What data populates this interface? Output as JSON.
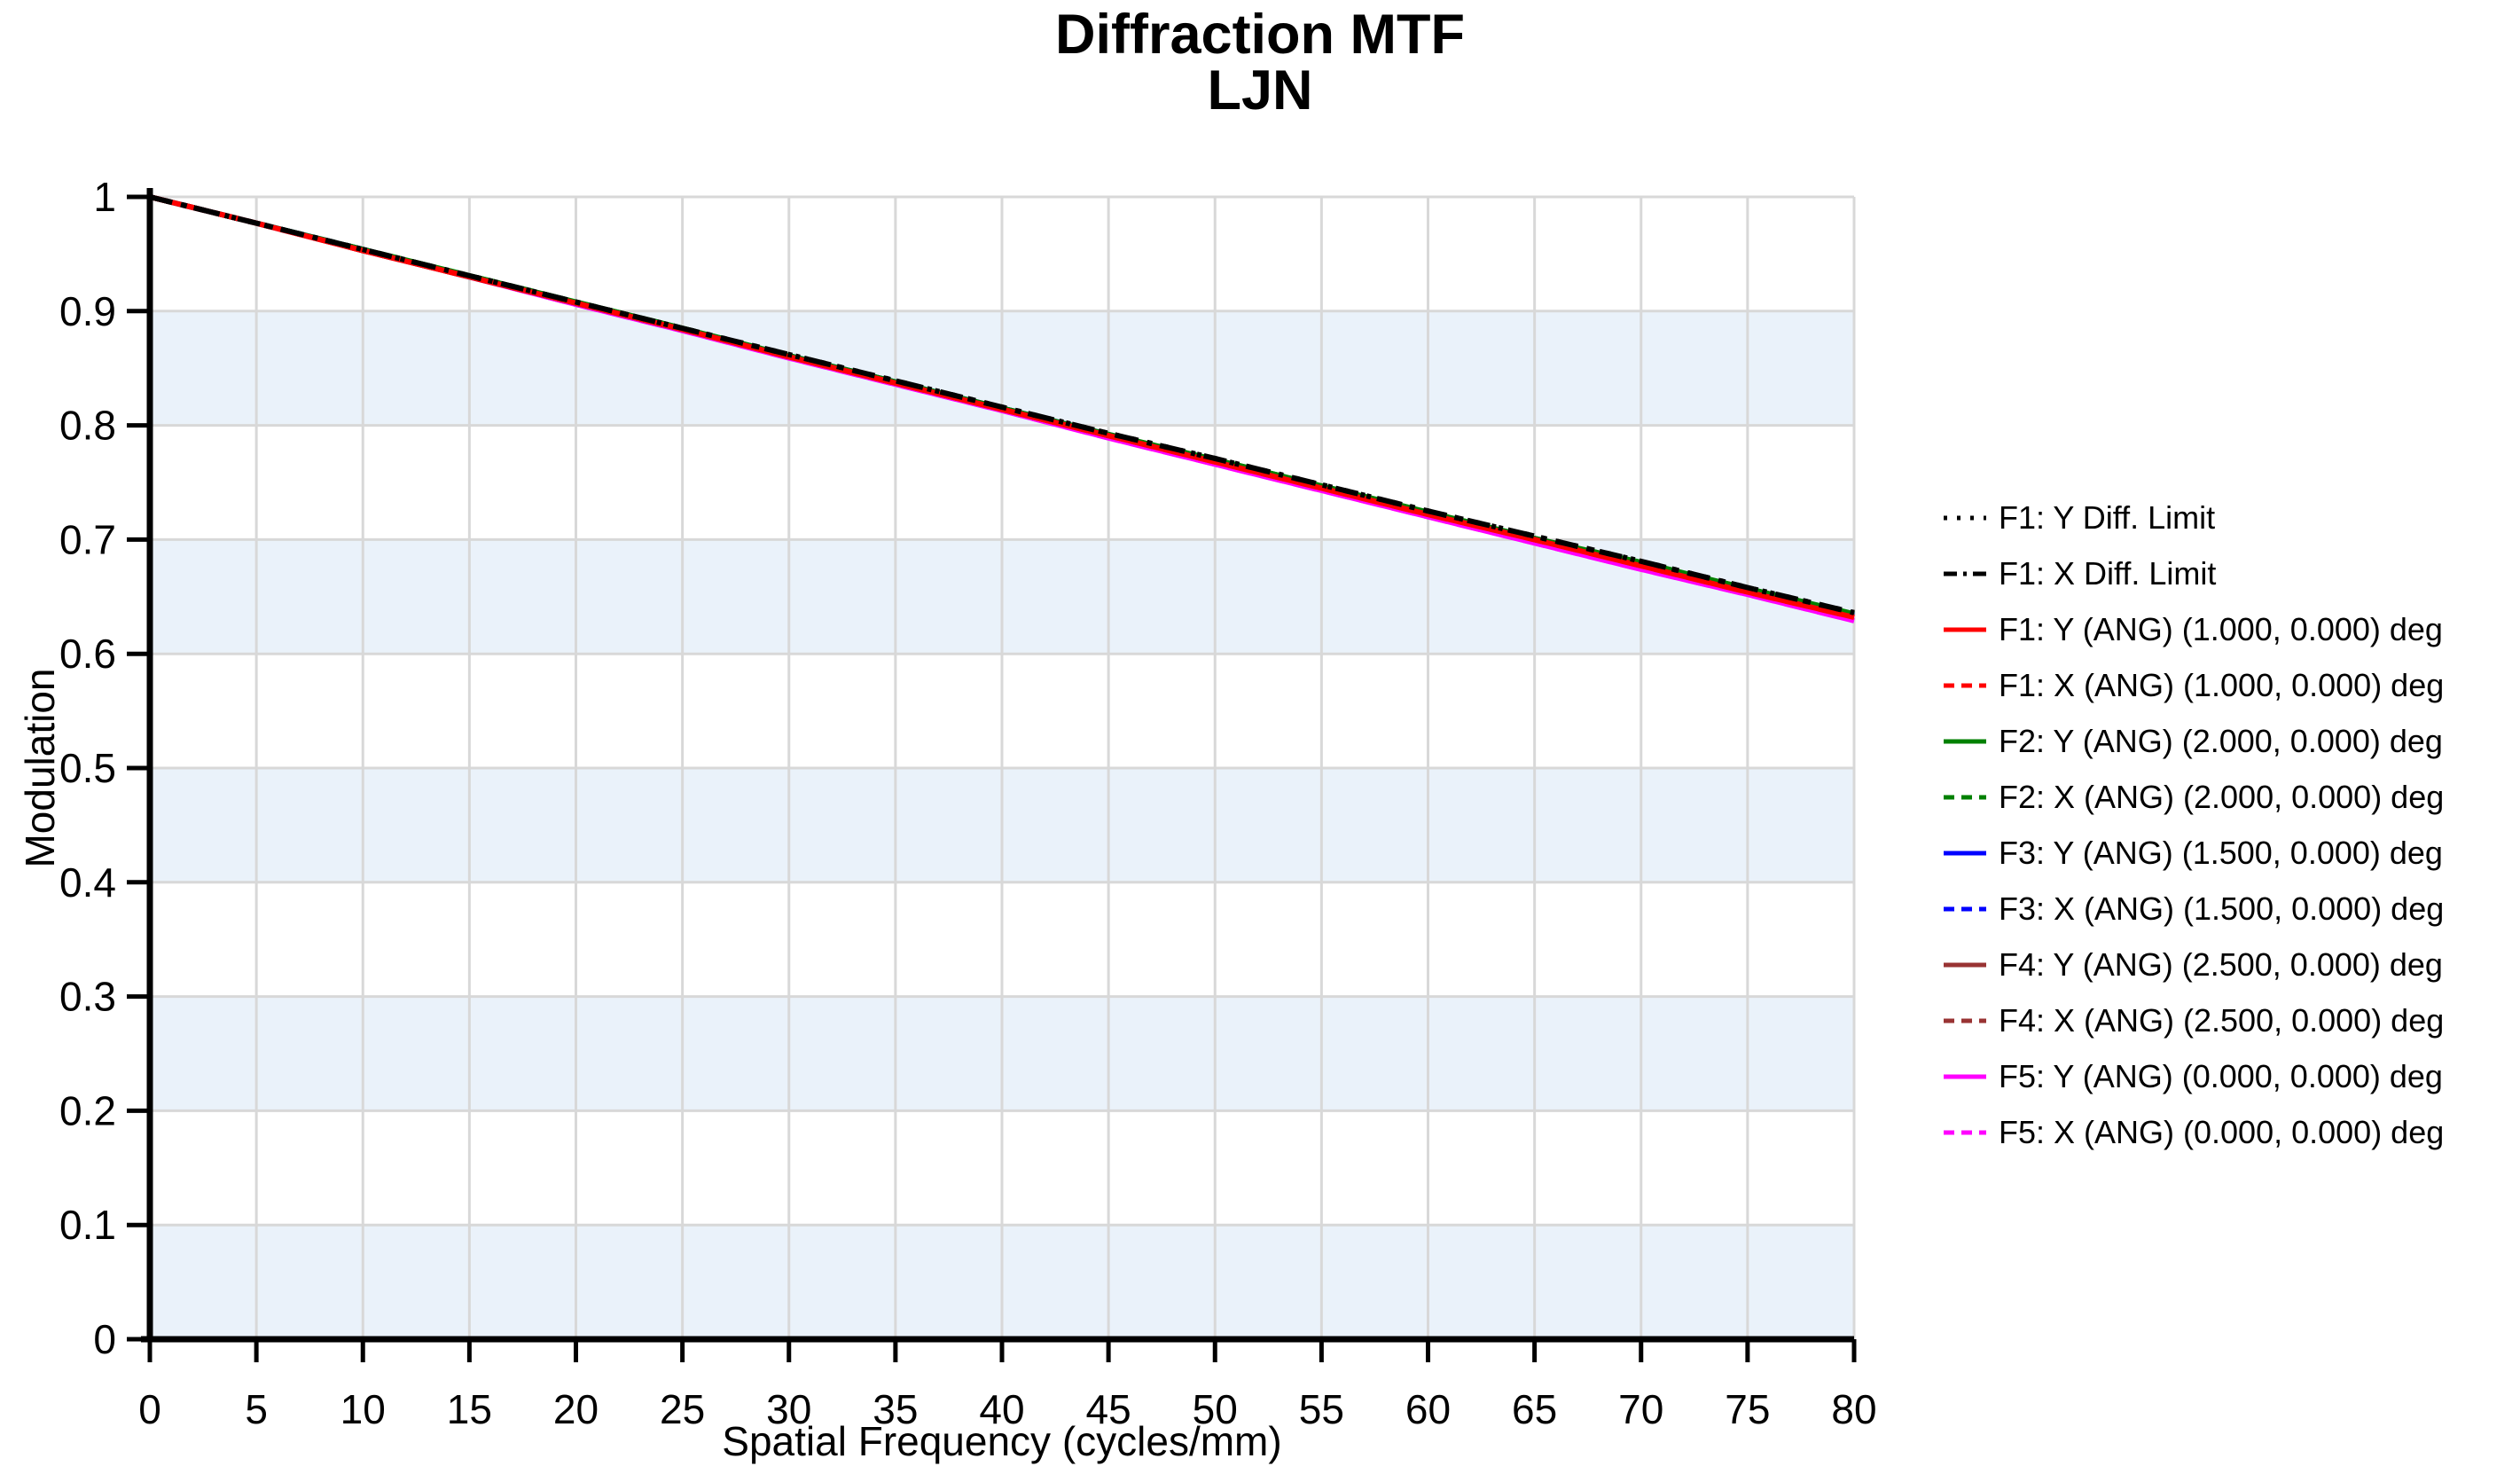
{
  "chart_data": {
    "type": "line",
    "title": "Diffraction MTF",
    "subtitle": "LJN",
    "xlabel": "Spatial Frequency (cycles/mm)",
    "ylabel": "Modulation",
    "xlim": [
      0,
      80
    ],
    "ylim": [
      0,
      1
    ],
    "x_ticks": [
      0,
      5,
      10,
      15,
      20,
      25,
      30,
      35,
      40,
      45,
      50,
      55,
      60,
      65,
      70,
      75,
      80
    ],
    "x_tick_labels": [
      "0",
      "5",
      "10",
      "15",
      "20",
      "25",
      "30",
      "35",
      "40",
      "45",
      "50",
      "55",
      "60",
      "65",
      "70",
      "75",
      "80"
    ],
    "y_ticks": [
      0,
      0.1,
      0.2,
      0.3,
      0.4,
      0.5,
      0.6,
      0.7,
      0.8,
      0.9,
      1
    ],
    "y_tick_labels": [
      "0",
      "0.1",
      "0.2",
      "0.3",
      "0.4",
      "0.5",
      "0.6",
      "0.7",
      "0.8",
      "0.9",
      "1"
    ],
    "grid": true,
    "legend_position": "right",
    "colors": {
      "band_fill": "#eaf2fa",
      "gridline": "#d8d8d8",
      "axis": "#000000",
      "text": "#000000",
      "background": "#ffffff"
    },
    "shaded_bands": [
      [
        0,
        0.1
      ],
      [
        0.2,
        0.3
      ],
      [
        0.4,
        0.5
      ],
      [
        0.6,
        0.7
      ],
      [
        0.8,
        0.9
      ]
    ],
    "x": [
      0,
      5,
      10,
      15,
      20,
      25,
      30,
      35,
      40,
      45,
      50,
      55,
      60,
      65,
      70,
      75,
      80
    ],
    "series": [
      {
        "name": "F1: Y Diff. Limit",
        "color": "#000000",
        "style": "dotted",
        "values": [
          1.0,
          0.977,
          0.954,
          0.931,
          0.908,
          0.885,
          0.862,
          0.839,
          0.816,
          0.793,
          0.771,
          0.748,
          0.725,
          0.703,
          0.681,
          0.658,
          0.636
        ]
      },
      {
        "name": "F1: X Diff. Limit",
        "color": "#000000",
        "style": "dashdot",
        "values": [
          1.0,
          0.977,
          0.954,
          0.931,
          0.908,
          0.885,
          0.862,
          0.839,
          0.816,
          0.793,
          0.771,
          0.748,
          0.725,
          0.703,
          0.681,
          0.658,
          0.636
        ]
      },
      {
        "name": "F1: Y (ANG) (1.000, 0.000) deg",
        "color": "#ff0000",
        "style": "solid",
        "values": [
          1.0,
          0.977,
          0.953,
          0.93,
          0.907,
          0.884,
          0.86,
          0.837,
          0.814,
          0.791,
          0.768,
          0.745,
          0.722,
          0.7,
          0.677,
          0.654,
          0.632
        ]
      },
      {
        "name": "F1: X (ANG) (1.000, 0.000) deg",
        "color": "#ff0000",
        "style": "dashed",
        "values": [
          1.0,
          0.977,
          0.953,
          0.93,
          0.907,
          0.884,
          0.86,
          0.837,
          0.814,
          0.791,
          0.768,
          0.745,
          0.722,
          0.7,
          0.677,
          0.654,
          0.632
        ]
      },
      {
        "name": "F2: Y (ANG) (2.000, 0.000) deg",
        "color": "#008000",
        "style": "solid",
        "values": [
          1.0,
          0.977,
          0.954,
          0.931,
          0.908,
          0.885,
          0.861,
          0.838,
          0.815,
          0.792,
          0.77,
          0.747,
          0.724,
          0.701,
          0.68,
          0.657,
          0.635
        ]
      },
      {
        "name": "F2: X (ANG) (2.000, 0.000) deg",
        "color": "#008000",
        "style": "dashed",
        "values": [
          1.0,
          0.977,
          0.954,
          0.931,
          0.908,
          0.885,
          0.861,
          0.838,
          0.815,
          0.792,
          0.77,
          0.747,
          0.724,
          0.701,
          0.68,
          0.657,
          0.635
        ]
      },
      {
        "name": "F3: Y (ANG) (1.500, 0.000) deg",
        "color": "#0000ff",
        "style": "solid",
        "values": [
          1.0,
          0.977,
          0.954,
          0.93,
          0.907,
          0.884,
          0.861,
          0.838,
          0.815,
          0.792,
          0.769,
          0.746,
          0.723,
          0.701,
          0.679,
          0.656,
          0.634
        ]
      },
      {
        "name": "F3: X (ANG) (1.500, 0.000) deg",
        "color": "#0000ff",
        "style": "dashed",
        "values": [
          1.0,
          0.977,
          0.954,
          0.93,
          0.907,
          0.884,
          0.861,
          0.838,
          0.815,
          0.792,
          0.769,
          0.746,
          0.723,
          0.701,
          0.679,
          0.656,
          0.634
        ]
      },
      {
        "name": "F4: Y (ANG) (2.500, 0.000) deg",
        "color": "#993333",
        "style": "solid",
        "values": [
          1.0,
          0.977,
          0.953,
          0.93,
          0.907,
          0.884,
          0.86,
          0.837,
          0.814,
          0.791,
          0.769,
          0.746,
          0.723,
          0.7,
          0.678,
          0.655,
          0.633
        ]
      },
      {
        "name": "F4: X (ANG) (2.500, 0.000) deg",
        "color": "#993333",
        "style": "dashed",
        "values": [
          1.0,
          0.977,
          0.953,
          0.93,
          0.907,
          0.884,
          0.86,
          0.837,
          0.814,
          0.791,
          0.769,
          0.746,
          0.723,
          0.7,
          0.678,
          0.655,
          0.633
        ]
      },
      {
        "name": "F5: Y (ANG) (0.000, 0.000) deg",
        "color": "#ff00ff",
        "style": "solid",
        "values": [
          1.0,
          0.977,
          0.953,
          0.93,
          0.906,
          0.883,
          0.859,
          0.836,
          0.813,
          0.789,
          0.766,
          0.743,
          0.72,
          0.697,
          0.674,
          0.652,
          0.629
        ]
      },
      {
        "name": "F5: X (ANG) (0.000, 0.000) deg",
        "color": "#ff00ff",
        "style": "dashed",
        "values": [
          1.0,
          0.977,
          0.953,
          0.93,
          0.906,
          0.883,
          0.859,
          0.836,
          0.813,
          0.789,
          0.766,
          0.743,
          0.72,
          0.697,
          0.674,
          0.652,
          0.629
        ]
      }
    ]
  }
}
